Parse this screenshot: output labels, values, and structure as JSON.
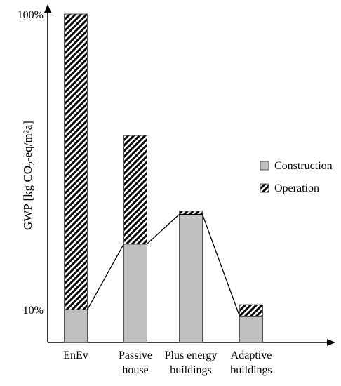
{
  "chart_data": {
    "type": "bar",
    "stacked": true,
    "categories": [
      [
        "EnEv"
      ],
      [
        "Passive",
        "house"
      ],
      [
        "Plus energy",
        "buildings"
      ],
      [
        "Adaptive",
        "buildings"
      ]
    ],
    "series": [
      {
        "name": "Construction",
        "values": [
          10,
          30,
          39,
          8
        ],
        "color": "#c0c0c0",
        "pattern": "solid"
      },
      {
        "name": "Operation",
        "values": [
          90,
          33,
          1,
          3.5
        ],
        "color": "#000000",
        "pattern": "diagonal-hatch"
      }
    ],
    "trend_line": {
      "series": "Construction",
      "description_connects_tops": true
    },
    "ylabel": {
      "prefix": "GWP [kg CO",
      "sub": "2",
      "suffix": "-eq/m²a]"
    },
    "ytick_labels": [
      {
        "value": 10,
        "label": "10%"
      },
      {
        "value": 100,
        "label": "100%"
      }
    ],
    "ylim": [
      0,
      100
    ],
    "legend": {
      "placement": "right",
      "entries": [
        "Construction",
        "Operation"
      ]
    },
    "grid": false
  }
}
